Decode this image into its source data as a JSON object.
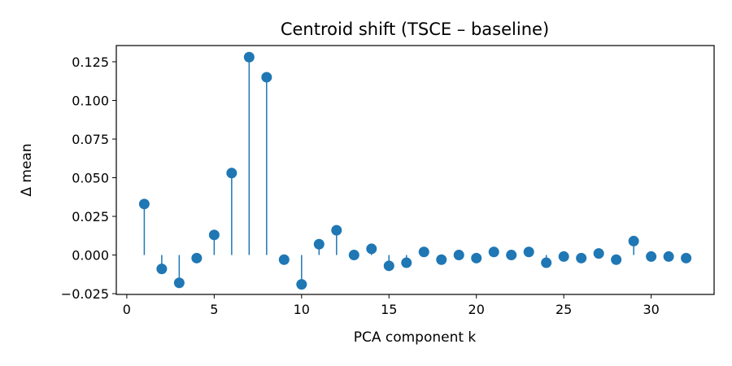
{
  "chart_data": {
    "type": "stem",
    "title": "Centroid shift (TSCE – baseline)",
    "xlabel": "PCA component k",
    "ylabel": "Δ mean",
    "xlim": [
      -0.6,
      33.6
    ],
    "ylim": [
      -0.0255,
      0.1355
    ],
    "x_ticks": [
      0,
      5,
      10,
      15,
      20,
      25,
      30
    ],
    "x_tick_labels": [
      "0",
      "5",
      "10",
      "15",
      "20",
      "25",
      "30"
    ],
    "y_ticks": [
      -0.025,
      0.0,
      0.025,
      0.05,
      0.075,
      0.1,
      0.125
    ],
    "y_tick_labels": [
      "−0.025",
      "0.000",
      "0.025",
      "0.050",
      "0.075",
      "0.100",
      "0.125"
    ],
    "baseline": 0,
    "grid": false,
    "color": "#1f77b4",
    "x": [
      1,
      2,
      3,
      4,
      5,
      6,
      7,
      8,
      9,
      10,
      11,
      12,
      13,
      14,
      15,
      16,
      17,
      18,
      19,
      20,
      21,
      22,
      23,
      24,
      25,
      26,
      27,
      28,
      29,
      30,
      31,
      32
    ],
    "y": [
      0.033,
      -0.009,
      -0.018,
      -0.002,
      0.013,
      0.053,
      0.128,
      0.115,
      -0.003,
      -0.019,
      0.007,
      0.016,
      0.0,
      0.004,
      -0.007,
      -0.005,
      0.002,
      -0.003,
      0.0,
      -0.002,
      0.002,
      0.0,
      0.002,
      -0.005,
      -0.001,
      -0.002,
      0.001,
      -0.003,
      0.009,
      -0.001,
      -0.001,
      -0.002
    ]
  }
}
